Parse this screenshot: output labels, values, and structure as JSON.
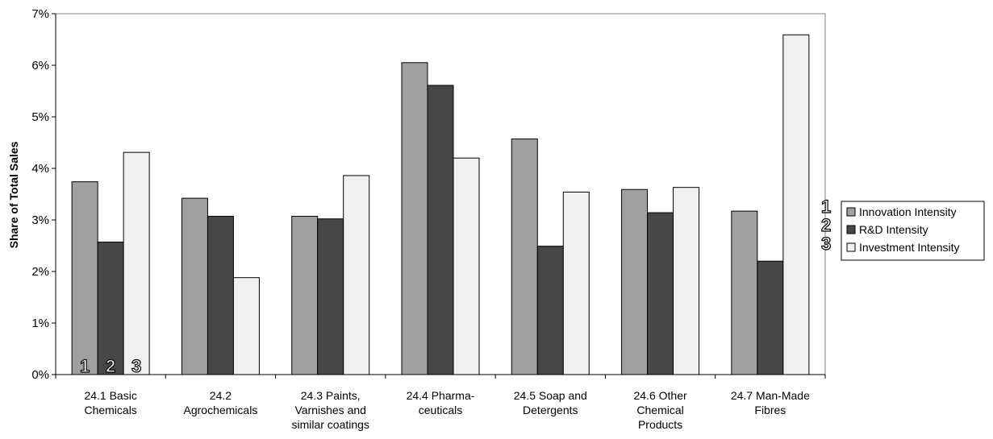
{
  "chart_data": {
    "type": "bar",
    "ylabel": "Share of Total Sales",
    "ylim": [
      0,
      7
    ],
    "yticks": [
      "0%",
      "1%",
      "2%",
      "3%",
      "4%",
      "5%",
      "6%",
      "7%"
    ],
    "categories": [
      [
        "24.1 Basic",
        "Chemicals"
      ],
      [
        "24.2",
        "Agrochemicals"
      ],
      [
        "24.3 Paints,",
        "Varnishes and",
        "similar coatings"
      ],
      [
        "24.4 Pharma-",
        "ceuticals"
      ],
      [
        "24.5 Soap and",
        "Detergents"
      ],
      [
        "24.6 Other",
        "Chemical",
        "Products"
      ],
      [
        "24.7 Man-Made",
        "Fibres"
      ]
    ],
    "series": [
      {
        "name": "Innovation Intensity",
        "color": "#a0a0a0",
        "values": [
          3.74,
          3.42,
          3.07,
          6.05,
          4.57,
          3.59,
          3.17
        ]
      },
      {
        "name": "R&D Intensity",
        "color": "#474747",
        "values": [
          2.57,
          3.07,
          3.02,
          5.61,
          2.49,
          3.14,
          2.2
        ]
      },
      {
        "name": "Investment Intensity",
        "color": "#f0f0f0",
        "values": [
          4.31,
          1.88,
          3.86,
          4.2,
          3.54,
          3.63,
          6.59
        ]
      }
    ],
    "legend": "right",
    "grid": false,
    "series_markers": [
      "1",
      "2",
      "3"
    ]
  }
}
